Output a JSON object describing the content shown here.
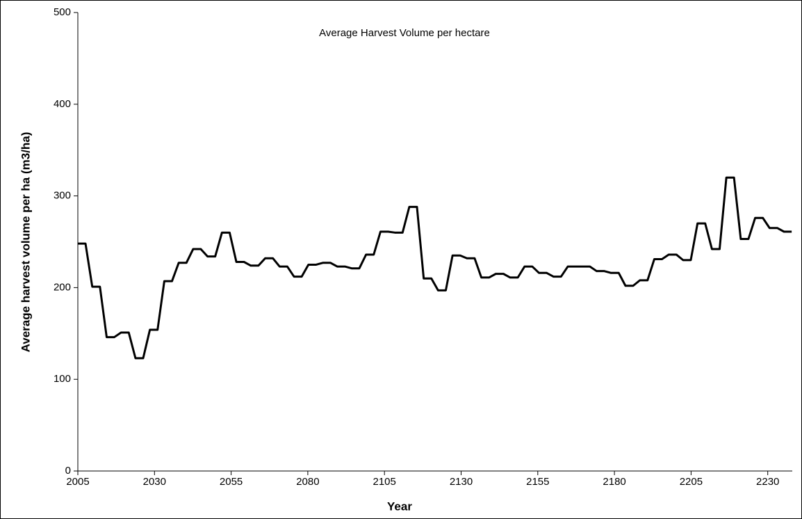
{
  "chart_data": {
    "type": "line",
    "title": "Average Harvest Volume per hectare",
    "x_label": "Year",
    "y_label": "Average harvest volume per ha (m3/ha)",
    "x": [
      2005,
      2007.5,
      2009.7,
      2012.2,
      2014.4,
      2016.9,
      2019.1,
      2021.6,
      2023.8,
      2026.3,
      2028.5,
      2031,
      2033.2,
      2035.7,
      2037.9,
      2040.4,
      2042.6,
      2045.1,
      2047.3,
      2049.8,
      2052,
      2054.5,
      2056.7,
      2059.2,
      2061.4,
      2063.9,
      2066.1,
      2068.6,
      2070.8,
      2073.3,
      2075.5,
      2078,
      2080.2,
      2082.7,
      2084.9,
      2087.4,
      2089.6,
      2092.1,
      2094.3,
      2096.8,
      2099,
      2101.5,
      2103.7,
      2106.2,
      2108.4,
      2110.9,
      2113.1,
      2115.6,
      2117.8,
      2120.3,
      2122.5,
      2125,
      2127.2,
      2129.7,
      2131.9,
      2134.4,
      2136.6,
      2139.1,
      2141.3,
      2143.8,
      2146,
      2148.5,
      2150.7,
      2153.2,
      2155.4,
      2157.9,
      2160.1,
      2162.6,
      2164.8,
      2167.3,
      2169.5,
      2172,
      2174.2,
      2176.7,
      2178.9,
      2181.4,
      2183.6,
      2186.1,
      2188.3,
      2190.8,
      2193,
      2195.5,
      2197.7,
      2200.2,
      2202.4,
      2204.9,
      2207.1,
      2209.6,
      2211.8,
      2214.3,
      2216.5,
      2219,
      2221.2,
      2223.7,
      2225.9,
      2228.4,
      2230.6,
      2233.1,
      2235.3,
      2237.8
    ],
    "series": [
      {
        "name": "Average harvest volume",
        "color": "#000000",
        "values": [
          248,
          248,
          201,
          201,
          146,
          146,
          151,
          151,
          123,
          123,
          154,
          154,
          207,
          207,
          227,
          227,
          242,
          242,
          234,
          234,
          260,
          260,
          228,
          228,
          224,
          224,
          232,
          232,
          223,
          223,
          212,
          212,
          225,
          225,
          227,
          227,
          223,
          223,
          221,
          221,
          236,
          236,
          261,
          261,
          260,
          260,
          288,
          288,
          210,
          210,
          197,
          197,
          235,
          235,
          232,
          232,
          211,
          211,
          215,
          215,
          211,
          211,
          223,
          223,
          216,
          216,
          212,
          212,
          223,
          223,
          223,
          223,
          218,
          218,
          216,
          216,
          202,
          202,
          208,
          208,
          231,
          231,
          236,
          236,
          230,
          230,
          270,
          270,
          242,
          242,
          320,
          320,
          253,
          253,
          276,
          276,
          265,
          265,
          261,
          261
        ]
      }
    ],
    "xlim": [
      2005,
      2238
    ],
    "xticks": [
      2005,
      2030,
      2055,
      2080,
      2105,
      2130,
      2155,
      2180,
      2205,
      2230
    ],
    "ylim": [
      0,
      500
    ],
    "yticks": [
      0,
      100,
      200,
      300,
      400,
      500
    ]
  }
}
